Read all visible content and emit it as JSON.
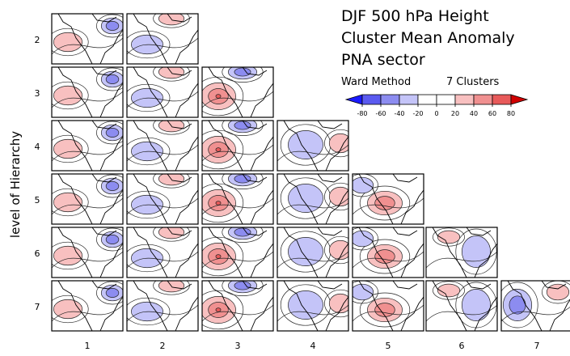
{
  "title_lines": [
    "DJF   500 hPa Height",
    "Cluster Mean Anomaly",
    "PNA sector"
  ],
  "y_axis_label": "level of Hierarchy",
  "row_labels": [
    "2",
    "3",
    "4",
    "5",
    "6",
    "7"
  ],
  "column_labels": [
    "1",
    "2",
    "3",
    "4",
    "5",
    "6",
    "7"
  ],
  "legend": {
    "method": "Ward Method",
    "clusters": "7 Clusters",
    "ticks": [
      -80,
      -60,
      -40,
      -20,
      0,
      20,
      40,
      60,
      80
    ],
    "colors": [
      "#1a1aff",
      "#5a5af0",
      "#8c8cf0",
      "#c4c4f8",
      "#ffffff",
      "#ffffff",
      "#f8c0c0",
      "#f09090",
      "#e85a5a",
      "#d10000"
    ]
  }
}
